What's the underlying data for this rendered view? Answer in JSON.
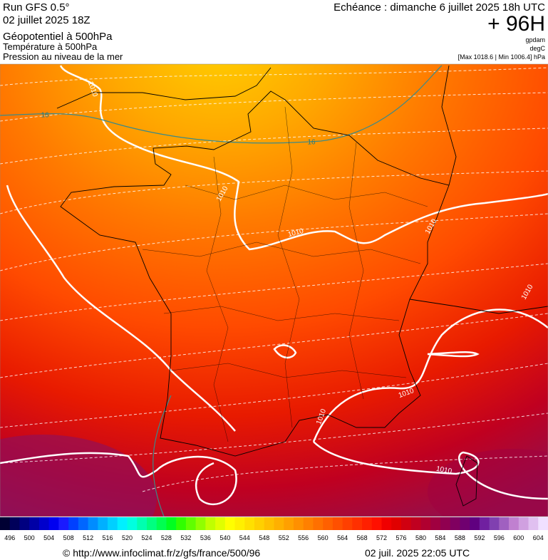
{
  "header": {
    "left": [
      "Run GFS 0.5°",
      "02 juillet 2025 18Z",
      "Géopotentiel à 500hPa",
      "Température à 500hPa",
      "Pression au niveau de la mer"
    ],
    "right_title": "Echéance : dimanche 6 juillet 2025 18h UTC",
    "lead": "+ 96H",
    "units": [
      "gpdam",
      "degC",
      "[Max 1018.6 | Min 1006.4] hPa"
    ]
  },
  "contour_labels": [
    "1010",
    "1010",
    "1010",
    "1010",
    "1010",
    "1010",
    "1010",
    "1010",
    "16",
    "16"
  ],
  "colorbar": {
    "ticks": [
      496,
      500,
      504,
      508,
      512,
      516,
      520,
      524,
      528,
      532,
      536,
      540,
      544,
      548,
      552,
      556,
      560,
      564,
      568,
      572,
      576,
      580,
      584,
      588,
      592,
      596,
      600,
      604
    ],
    "colors": [
      "#000033",
      "#00005a",
      "#000080",
      "#0000a6",
      "#0000cc",
      "#0000f0",
      "#1a1aff",
      "#0040ff",
      "#0066ff",
      "#008cff",
      "#00b0ff",
      "#00d0ff",
      "#00f0ff",
      "#00ffe0",
      "#00ffb0",
      "#00ff80",
      "#00ff50",
      "#00ff20",
      "#30ff00",
      "#60ff00",
      "#90ff00",
      "#c0ff00",
      "#e0ff00",
      "#ffff00",
      "#fff000",
      "#ffe000",
      "#ffd000",
      "#ffc000",
      "#ffb000",
      "#ffa000",
      "#ff9000",
      "#ff8000",
      "#ff7000",
      "#ff6000",
      "#ff5000",
      "#ff4000",
      "#ff3000",
      "#ff2000",
      "#ff1000",
      "#f00000",
      "#e00000",
      "#d00010",
      "#c00020",
      "#b00030",
      "#a00040",
      "#900050",
      "#800060",
      "#700070",
      "#600080",
      "#7020a0",
      "#8040b0",
      "#a060c0",
      "#c080d0",
      "#d0a0e0",
      "#e0c0f0",
      "#f0e0ff"
    ]
  },
  "footer": {
    "source": "© http://www.infoclimat.fr/z/gfs/france/500/96",
    "timestamp": "02 juil. 2025 22:05 UTC"
  }
}
